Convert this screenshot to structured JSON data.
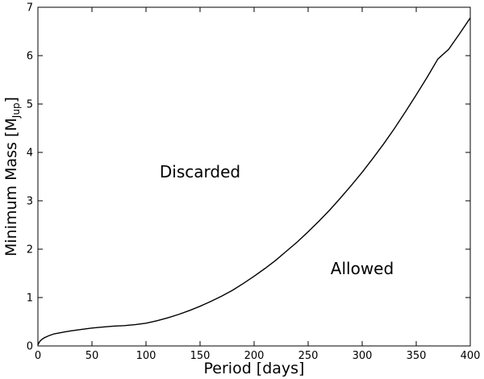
{
  "chart_data": {
    "type": "line",
    "xlabel": "Period [days]",
    "ylabel": {
      "main": "Minimum Mass [M",
      "subscript": "Jup",
      "close": "]"
    },
    "xlim": [
      0,
      400
    ],
    "ylim": [
      0,
      7
    ],
    "xticks": [
      0,
      50,
      100,
      150,
      200,
      250,
      300,
      350,
      400
    ],
    "yticks": [
      0,
      1,
      2,
      3,
      4,
      5,
      6,
      7
    ],
    "grid": false,
    "annotations": [
      {
        "text": "Discarded",
        "x": 150,
        "y": 3.6
      },
      {
        "text": "Allowed",
        "x": 300,
        "y": 1.6
      }
    ],
    "series": [
      {
        "color": "#000000",
        "x": [
          0,
          1,
          2,
          4,
          6,
          8,
          10,
          15,
          20,
          25,
          30,
          40,
          50,
          60,
          70,
          80,
          90,
          100,
          110,
          120,
          130,
          140,
          150,
          160,
          170,
          180,
          190,
          200,
          210,
          220,
          230,
          240,
          250,
          260,
          270,
          280,
          290,
          300,
          310,
          320,
          330,
          340,
          350,
          360,
          370,
          380,
          390,
          400
        ],
        "y": [
          0.02,
          0.07,
          0.1,
          0.14,
          0.17,
          0.19,
          0.21,
          0.25,
          0.27,
          0.29,
          0.31,
          0.34,
          0.37,
          0.39,
          0.41,
          0.42,
          0.44,
          0.47,
          0.52,
          0.58,
          0.65,
          0.73,
          0.82,
          0.92,
          1.03,
          1.15,
          1.29,
          1.44,
          1.6,
          1.77,
          1.96,
          2.15,
          2.36,
          2.58,
          2.81,
          3.06,
          3.32,
          3.59,
          3.88,
          4.18,
          4.5,
          4.84,
          5.19,
          5.55,
          5.93,
          6.13,
          6.45,
          6.78
        ]
      }
    ]
  }
}
